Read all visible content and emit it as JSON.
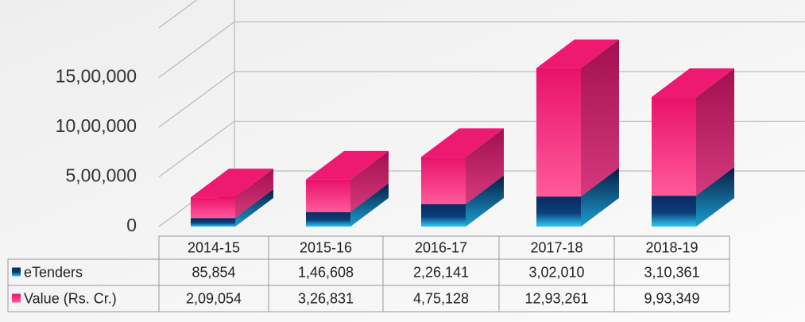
{
  "chart_data": {
    "type": "bar3d_stacked",
    "categories": [
      "2014-15",
      "2015-16",
      "2016-17",
      "2017-18",
      "2018-19"
    ],
    "series": [
      {
        "name": "eTenders",
        "color": "#0b2a5e",
        "values": [
          85854,
          146608,
          226141,
          302010,
          310361
        ],
        "value_labels": [
          "85,854",
          "1,46,608",
          "2,26,141",
          "3,02,010",
          "3,10,361"
        ]
      },
      {
        "name": "Value (Rs. Cr.)",
        "color": "#ee1a72",
        "values": [
          209054,
          326831,
          475128,
          1293261,
          993349
        ],
        "value_labels": [
          "2,09,054",
          "3,26,831",
          "4,75,128",
          "12,93,261",
          "9,93,349"
        ]
      }
    ],
    "ylim": [
      0,
      2000000
    ],
    "yticks": [
      0,
      {
        "value": 500000,
        "label": "5,00,000"
      },
      {
        "value": 1000000,
        "label": "10,00,000"
      },
      {
        "value": 1500000,
        "label": "15,00,000"
      }
    ],
    "grid": true
  }
}
